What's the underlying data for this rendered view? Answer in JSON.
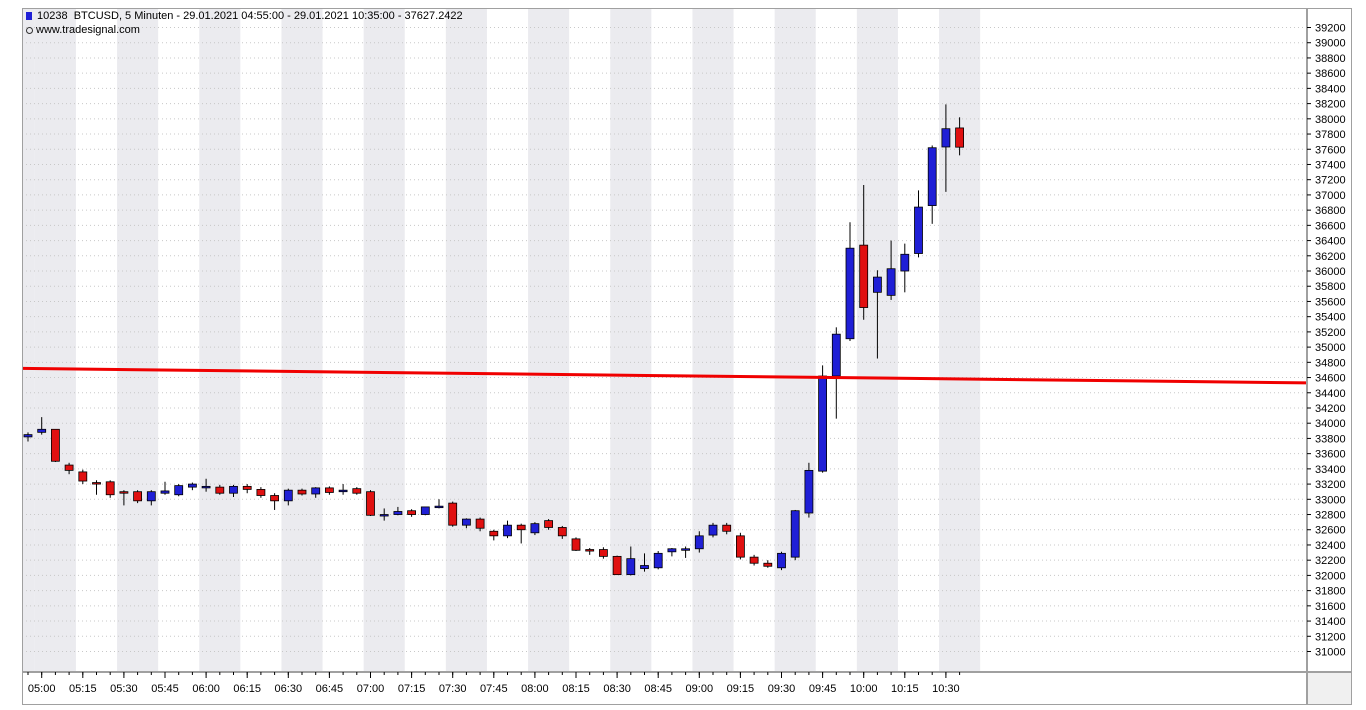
{
  "header": {
    "symbol_id": "10238",
    "title": "BTCUSD, 5 Minuten - 29.01.2021 04:55:00 - 29.01.2021 10:35:00 - 37627.2422",
    "source": "www.tradesignal.com"
  },
  "colors": {
    "up_candle": "#1f1fd6",
    "down_candle": "#e01010",
    "reference_line": "#f00000",
    "band": "#ebebef",
    "grid": "#c8c8c8"
  },
  "chart_data": {
    "type": "candlestick",
    "interval_minutes": 5,
    "x_axis": {
      "tick_labels": [
        "05:00",
        "05:15",
        "05:30",
        "05:45",
        "06:00",
        "06:15",
        "06:30",
        "06:45",
        "07:00",
        "07:15",
        "07:30",
        "07:45",
        "08:00",
        "08:15",
        "08:30",
        "08:45",
        "09:00",
        "09:15",
        "09:30",
        "09:45",
        "10:00",
        "10:15",
        "10:30"
      ]
    },
    "y_axis": {
      "range": [
        30800,
        39350
      ],
      "tick_labels": [
        "31000",
        "31200",
        "31400",
        "31600",
        "31800",
        "32000",
        "32200",
        "32400",
        "32600",
        "32800",
        "33000",
        "33200",
        "33400",
        "33600",
        "33800",
        "34000",
        "34200",
        "34400",
        "34600",
        "34800",
        "35000",
        "35200",
        "35400",
        "35600",
        "35800",
        "36000",
        "36200",
        "36400",
        "36600",
        "36800",
        "37000",
        "37200",
        "37400",
        "37600",
        "37800",
        "38000",
        "38200",
        "38400",
        "38600",
        "38800",
        "39000",
        "39200"
      ]
    },
    "grid": "dotted",
    "candles": [
      {
        "t": "04:55",
        "o": 33820,
        "h": 33880,
        "l": 33760,
        "c": 33850
      },
      {
        "t": "05:00",
        "o": 33880,
        "h": 34080,
        "l": 33850,
        "c": 33920
      },
      {
        "t": "05:05",
        "o": 33920,
        "h": 33920,
        "l": 33490,
        "c": 33500
      },
      {
        "t": "05:10",
        "o": 33450,
        "h": 33480,
        "l": 33330,
        "c": 33380
      },
      {
        "t": "05:15",
        "o": 33360,
        "h": 33390,
        "l": 33200,
        "c": 33240
      },
      {
        "t": "05:20",
        "o": 33220,
        "h": 33250,
        "l": 33060,
        "c": 33210
      },
      {
        "t": "05:25",
        "o": 33230,
        "h": 33250,
        "l": 33020,
        "c": 33060
      },
      {
        "t": "05:30",
        "o": 33100,
        "h": 33120,
        "l": 32920,
        "c": 33090
      },
      {
        "t": "05:35",
        "o": 33100,
        "h": 33120,
        "l": 32950,
        "c": 32980
      },
      {
        "t": "05:40",
        "o": 32980,
        "h": 33120,
        "l": 32920,
        "c": 33100
      },
      {
        "t": "05:45",
        "o": 33080,
        "h": 33230,
        "l": 33060,
        "c": 33110
      },
      {
        "t": "05:50",
        "o": 33060,
        "h": 33200,
        "l": 33040,
        "c": 33180
      },
      {
        "t": "05:55",
        "o": 33160,
        "h": 33220,
        "l": 33120,
        "c": 33200
      },
      {
        "t": "06:00",
        "o": 33150,
        "h": 33270,
        "l": 33100,
        "c": 33170
      },
      {
        "t": "06:05",
        "o": 33160,
        "h": 33190,
        "l": 33060,
        "c": 33080
      },
      {
        "t": "06:10",
        "o": 33080,
        "h": 33190,
        "l": 33030,
        "c": 33170
      },
      {
        "t": "06:15",
        "o": 33170,
        "h": 33200,
        "l": 33080,
        "c": 33130
      },
      {
        "t": "06:20",
        "o": 33130,
        "h": 33160,
        "l": 33020,
        "c": 33050
      },
      {
        "t": "06:25",
        "o": 33050,
        "h": 33080,
        "l": 32860,
        "c": 32980
      },
      {
        "t": "06:30",
        "o": 32980,
        "h": 33140,
        "l": 32920,
        "c": 33120
      },
      {
        "t": "06:35",
        "o": 33120,
        "h": 33140,
        "l": 33050,
        "c": 33070
      },
      {
        "t": "06:40",
        "o": 33070,
        "h": 33160,
        "l": 33020,
        "c": 33150
      },
      {
        "t": "06:45",
        "o": 33150,
        "h": 33170,
        "l": 33060,
        "c": 33090
      },
      {
        "t": "06:50",
        "o": 33100,
        "h": 33200,
        "l": 33060,
        "c": 33120
      },
      {
        "t": "06:55",
        "o": 33140,
        "h": 33160,
        "l": 33060,
        "c": 33080
      },
      {
        "t": "07:00",
        "o": 33100,
        "h": 33120,
        "l": 32780,
        "c": 32790
      },
      {
        "t": "07:05",
        "o": 32790,
        "h": 32880,
        "l": 32720,
        "c": 32800
      },
      {
        "t": "07:10",
        "o": 32800,
        "h": 32900,
        "l": 32790,
        "c": 32840
      },
      {
        "t": "07:15",
        "o": 32850,
        "h": 32870,
        "l": 32770,
        "c": 32800
      },
      {
        "t": "07:20",
        "o": 32800,
        "h": 32900,
        "l": 32790,
        "c": 32900
      },
      {
        "t": "07:25",
        "o": 32900,
        "h": 33000,
        "l": 32880,
        "c": 32910
      },
      {
        "t": "07:30",
        "o": 32950,
        "h": 32970,
        "l": 32640,
        "c": 32660
      },
      {
        "t": "07:35",
        "o": 32660,
        "h": 32750,
        "l": 32620,
        "c": 32740
      },
      {
        "t": "07:40",
        "o": 32740,
        "h": 32760,
        "l": 32580,
        "c": 32620
      },
      {
        "t": "07:45",
        "o": 32580,
        "h": 32600,
        "l": 32460,
        "c": 32520
      },
      {
        "t": "07:50",
        "o": 32520,
        "h": 32720,
        "l": 32490,
        "c": 32660
      },
      {
        "t": "07:55",
        "o": 32660,
        "h": 32680,
        "l": 32420,
        "c": 32600
      },
      {
        "t": "08:00",
        "o": 32560,
        "h": 32700,
        "l": 32530,
        "c": 32680
      },
      {
        "t": "08:05",
        "o": 32720,
        "h": 32740,
        "l": 32600,
        "c": 32630
      },
      {
        "t": "08:10",
        "o": 32630,
        "h": 32650,
        "l": 32480,
        "c": 32520
      },
      {
        "t": "08:15",
        "o": 32480,
        "h": 32500,
        "l": 32320,
        "c": 32330
      },
      {
        "t": "08:20",
        "o": 32340,
        "h": 32360,
        "l": 32270,
        "c": 32320
      },
      {
        "t": "08:25",
        "o": 32340,
        "h": 32370,
        "l": 32220,
        "c": 32250
      },
      {
        "t": "08:30",
        "o": 32250,
        "h": 32260,
        "l": 32010,
        "c": 32010
      },
      {
        "t": "08:35",
        "o": 32010,
        "h": 32380,
        "l": 32000,
        "c": 32220
      },
      {
        "t": "08:40",
        "o": 32090,
        "h": 32290,
        "l": 32050,
        "c": 32130
      },
      {
        "t": "08:45",
        "o": 32100,
        "h": 32320,
        "l": 32080,
        "c": 32290
      },
      {
        "t": "08:50",
        "o": 32310,
        "h": 32360,
        "l": 32250,
        "c": 32350
      },
      {
        "t": "08:55",
        "o": 32330,
        "h": 32380,
        "l": 32230,
        "c": 32350
      },
      {
        "t": "09:00",
        "o": 32350,
        "h": 32580,
        "l": 32300,
        "c": 32520
      },
      {
        "t": "09:05",
        "o": 32530,
        "h": 32690,
        "l": 32500,
        "c": 32660
      },
      {
        "t": "09:10",
        "o": 32660,
        "h": 32690,
        "l": 32540,
        "c": 32580
      },
      {
        "t": "09:15",
        "o": 32520,
        "h": 32560,
        "l": 32210,
        "c": 32240
      },
      {
        "t": "09:20",
        "o": 32240,
        "h": 32270,
        "l": 32130,
        "c": 32160
      },
      {
        "t": "09:25",
        "o": 32160,
        "h": 32200,
        "l": 32100,
        "c": 32120
      },
      {
        "t": "09:30",
        "o": 32100,
        "h": 32310,
        "l": 32070,
        "c": 32290
      },
      {
        "t": "09:35",
        "o": 32240,
        "h": 32860,
        "l": 32200,
        "c": 32850
      },
      {
        "t": "09:40",
        "o": 32820,
        "h": 33480,
        "l": 32760,
        "c": 33380
      },
      {
        "t": "09:45",
        "o": 33370,
        "h": 34760,
        "l": 33350,
        "c": 34620
      },
      {
        "t": "09:50",
        "o": 34620,
        "h": 35260,
        "l": 34060,
        "c": 35170
      },
      {
        "t": "09:55",
        "o": 35110,
        "h": 36640,
        "l": 35080,
        "c": 36300
      },
      {
        "t": "10:00",
        "o": 36340,
        "h": 37130,
        "l": 35360,
        "c": 35520
      },
      {
        "t": "10:05",
        "o": 35720,
        "h": 36010,
        "l": 34850,
        "c": 35920
      },
      {
        "t": "10:10",
        "o": 35680,
        "h": 36400,
        "l": 35620,
        "c": 36030
      },
      {
        "t": "10:15",
        "o": 36000,
        "h": 36360,
        "l": 35720,
        "c": 36220
      },
      {
        "t": "10:20",
        "o": 36230,
        "h": 37060,
        "l": 36180,
        "c": 36840
      },
      {
        "t": "10:25",
        "o": 36860,
        "h": 37650,
        "l": 36620,
        "c": 37620
      },
      {
        "t": "10:30",
        "o": 37630,
        "h": 38190,
        "l": 37040,
        "c": 37870
      },
      {
        "t": "10:35",
        "o": 37880,
        "h": 38020,
        "l": 37520,
        "c": 37627.2422
      }
    ],
    "reference_line": {
      "start_value": 34720,
      "end_value": 34530
    }
  }
}
